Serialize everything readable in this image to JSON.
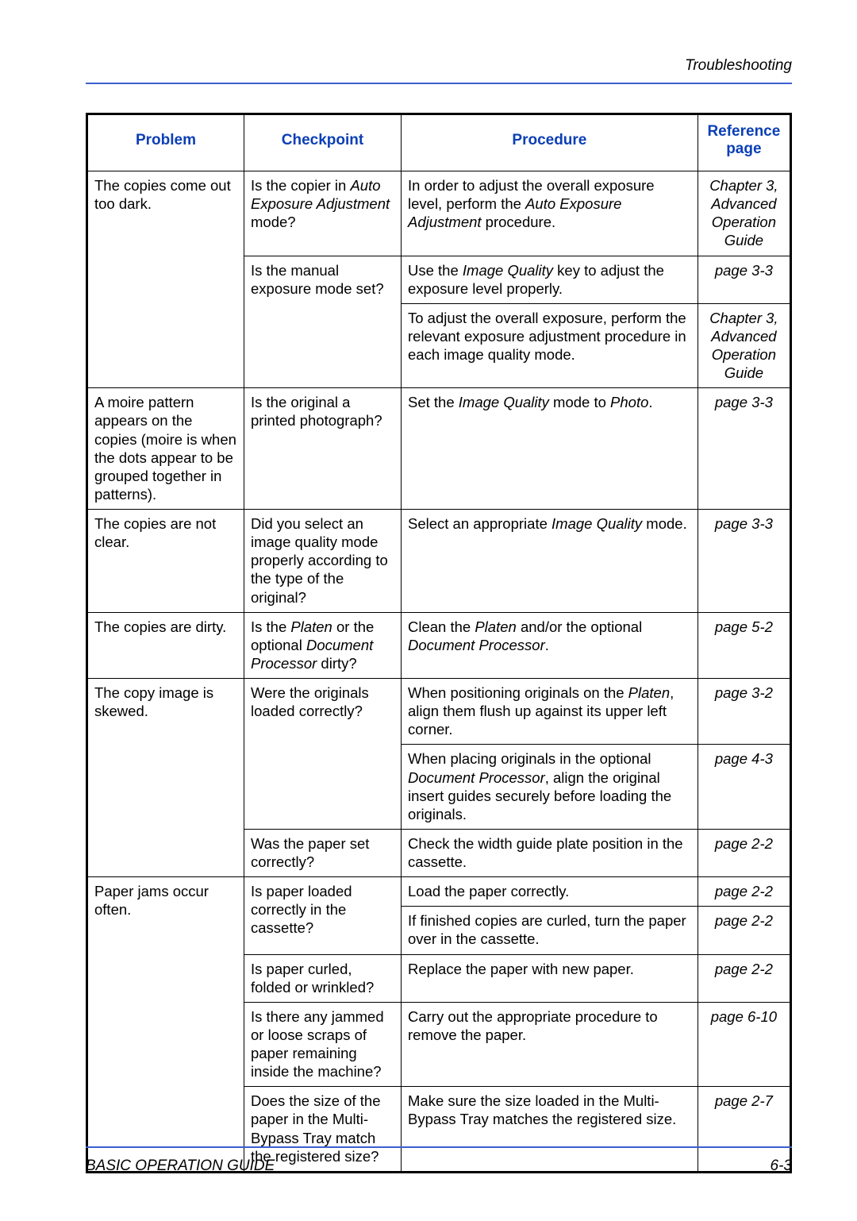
{
  "running_head": "Troubleshooting",
  "headers": {
    "problem": "Problem",
    "checkpoint": "Checkpoint",
    "procedure": "Procedure",
    "reference": "Reference page"
  },
  "rows": [
    {
      "problem": "The copies come out too dark.",
      "problem_rowspan": 3,
      "checkpoint_html": "Is the copier in <span class=\"ital\">Auto Exposure Adjustment</span> mode?",
      "checkpoint_rowspan": 1,
      "procedure_html": "In order to adjust the overall exposure level, perform the <span class=\"ital\">Auto Exposure Adjustment</span> procedure.",
      "reference": "Chapter 3, Advanced Operation Guide"
    },
    {
      "checkpoint_html": "Is the manual exposure mode set?",
      "checkpoint_rowspan": 2,
      "procedure_html": "Use the <span class=\"ital\">Image Quality</span> key to adjust the exposure level properly.",
      "reference": "page 3-3"
    },
    {
      "procedure_html": "To adjust the overall exposure, perform the relevant exposure adjustment procedure in each image quality mode.",
      "reference": "Chapter 3, Advanced Operation Guide"
    },
    {
      "problem": "A moire pattern appears on the copies (moire is when the dots appear to be grouped together in patterns).",
      "problem_rowspan": 1,
      "checkpoint_html": "Is the original a printed photograph?",
      "checkpoint_rowspan": 1,
      "procedure_html": "Set the <span class=\"ital\">Image Quality</span> mode to <span class=\"ital\">Photo</span>.",
      "reference": "page 3-3"
    },
    {
      "problem": "The copies are not clear.",
      "problem_rowspan": 1,
      "checkpoint_html": "Did you select an image quality mode properly according to the type of the original?",
      "checkpoint_rowspan": 1,
      "procedure_html": "Select an appropriate <span class=\"ital\">Image Quality</span> mode.",
      "reference": "page 3-3"
    },
    {
      "problem": "The copies are dirty.",
      "problem_rowspan": 1,
      "checkpoint_html": "Is the <span class=\"ital\">Platen</span> or the optional <span class=\"ital\">Document Processor</span> dirty?",
      "checkpoint_rowspan": 1,
      "procedure_html": "Clean the <span class=\"ital\">Platen</span> and/or the optional <span class=\"ital\">Document Processor</span>.",
      "reference": "page 5-2"
    },
    {
      "problem": "The copy image is skewed.",
      "problem_rowspan": 3,
      "checkpoint_html": "Were the originals loaded correctly?",
      "checkpoint_rowspan": 2,
      "procedure_html": "When positioning originals on the <span class=\"ital\">Platen</span>, align them flush up against its upper left corner.",
      "reference": "page 3-2"
    },
    {
      "procedure_html": "When placing originals in the optional <span class=\"ital\">Document Processor</span>, align the original insert guides securely before loading the originals.",
      "reference": "page 4-3"
    },
    {
      "checkpoint_html": "Was the paper set correctly?",
      "checkpoint_rowspan": 1,
      "procedure_html": "Check the width guide plate position in the cassette.",
      "reference": "page 2-2"
    },
    {
      "problem": "Paper jams occur often.",
      "problem_rowspan": 5,
      "checkpoint_html": "Is paper loaded correctly in the cassette?",
      "checkpoint_rowspan": 2,
      "procedure_html": "Load the paper correctly.",
      "reference": "page 2-2"
    },
    {
      "procedure_html": "If finished copies are curled, turn the paper over in the cassette.",
      "reference": "page 2-2"
    },
    {
      "checkpoint_html": "Is paper curled, folded or wrinkled?",
      "checkpoint_rowspan": 1,
      "procedure_html": "Replace the paper with new paper.",
      "reference": "page 2-2"
    },
    {
      "checkpoint_html": "Is there any jammed or loose scraps of paper remaining inside the machine?",
      "checkpoint_rowspan": 1,
      "procedure_html": "Carry out the appropriate procedure to remove the paper.",
      "reference": "page 6-10"
    },
    {
      "checkpoint_html": "Does the size of the paper in the Multi-Bypass Tray match the registered size?",
      "checkpoint_rowspan": 1,
      "procedure_html": "Make sure the size loaded in the Multi-Bypass Tray matches the registered size.",
      "reference": "page 2-7",
      "last": true
    }
  ],
  "footer_left": "BASIC OPERATION GUIDE",
  "footer_right": "6-3",
  "colors": {
    "rule": "#3b5fd1",
    "header_text": "#0b3fb6",
    "text": "#000000",
    "background": "#ffffff"
  }
}
